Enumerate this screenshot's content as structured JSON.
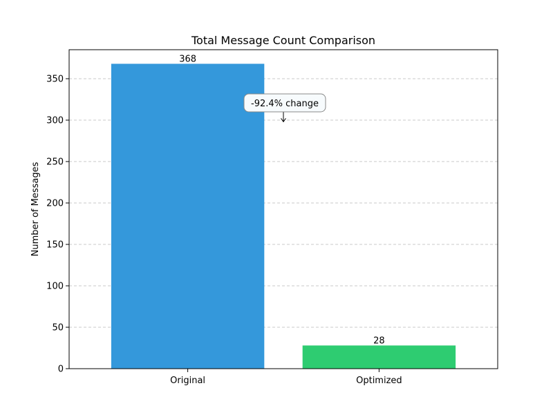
{
  "chart_data": {
    "type": "bar",
    "title": "Total Message Count Comparison",
    "xlabel": "",
    "ylabel": "Number of Messages",
    "categories": [
      "Original",
      "Optimized"
    ],
    "values": [
      368,
      28
    ],
    "value_labels": [
      "368",
      "28"
    ],
    "colors": [
      "#3498db",
      "#2ecc71"
    ],
    "ylim": [
      0,
      385
    ],
    "yticks": [
      0,
      50,
      100,
      150,
      200,
      250,
      300,
      350
    ],
    "grid": true,
    "annotation": {
      "text": "-92.4% change",
      "arrow_target": {
        "x": 0.5,
        "y": 298
      }
    }
  }
}
